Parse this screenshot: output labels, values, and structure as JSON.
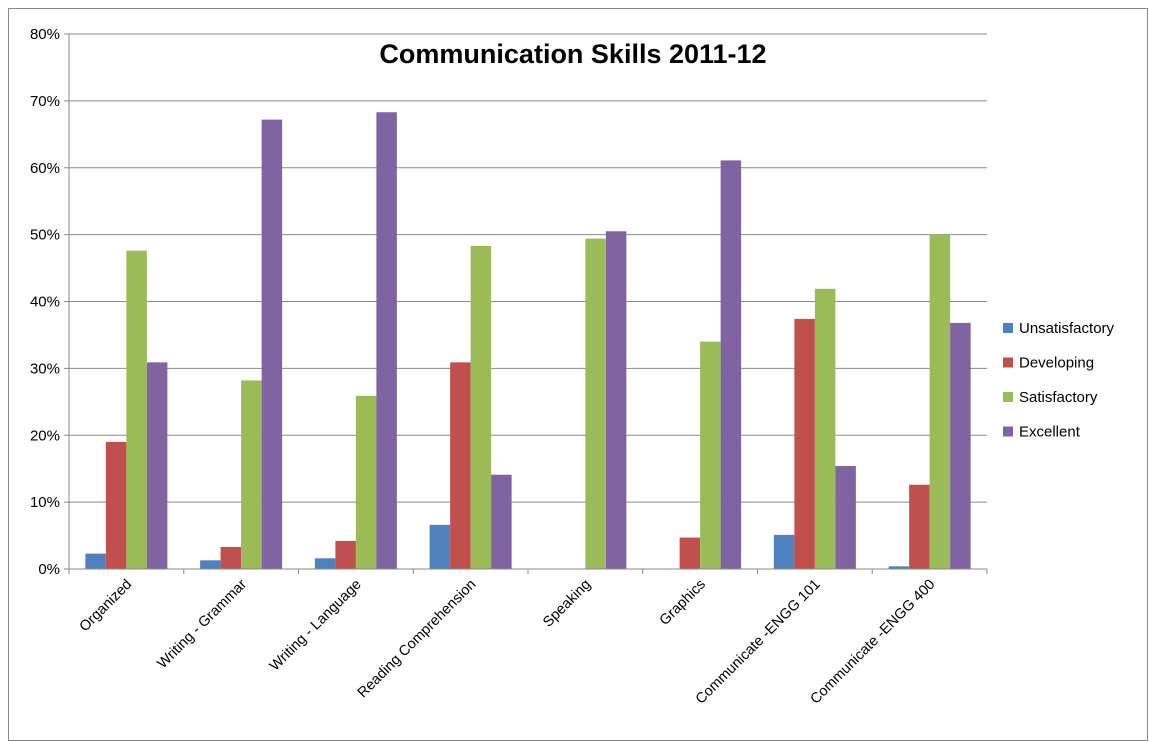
{
  "chart_data": {
    "type": "bar",
    "title": "Communication Skills 2011-12",
    "xlabel": "",
    "ylabel": "",
    "ylim": [
      0,
      80
    ],
    "yticks": [
      "0%",
      "10%",
      "20%",
      "30%",
      "40%",
      "50%",
      "60%",
      "70%",
      "80%"
    ],
    "grid": true,
    "legend_position": "right",
    "categories": [
      "Organized",
      "Writing - Grammar",
      "Writing - Language",
      "Reading Comprehension",
      "Speaking",
      "Graphics",
      "Communicate -ENGG 101",
      "Communicate -ENGG 400"
    ],
    "series": [
      {
        "name": "Unsatisfactory",
        "color": "#4f81bd",
        "values": [
          2.3,
          1.3,
          1.6,
          6.6,
          0,
          0,
          5.1,
          0.4
        ]
      },
      {
        "name": "Developing",
        "color": "#c0504d",
        "values": [
          19.0,
          3.3,
          4.2,
          30.9,
          0,
          4.7,
          37.4,
          12.6
        ]
      },
      {
        "name": "Satisfactory",
        "color": "#9bbb59",
        "values": [
          47.6,
          28.2,
          25.9,
          48.3,
          49.4,
          34.0,
          41.9,
          50.0
        ]
      },
      {
        "name": "Excellent",
        "color": "#8064a2",
        "values": [
          30.9,
          67.2,
          68.3,
          14.1,
          50.5,
          61.1,
          15.4,
          36.8
        ]
      }
    ]
  }
}
